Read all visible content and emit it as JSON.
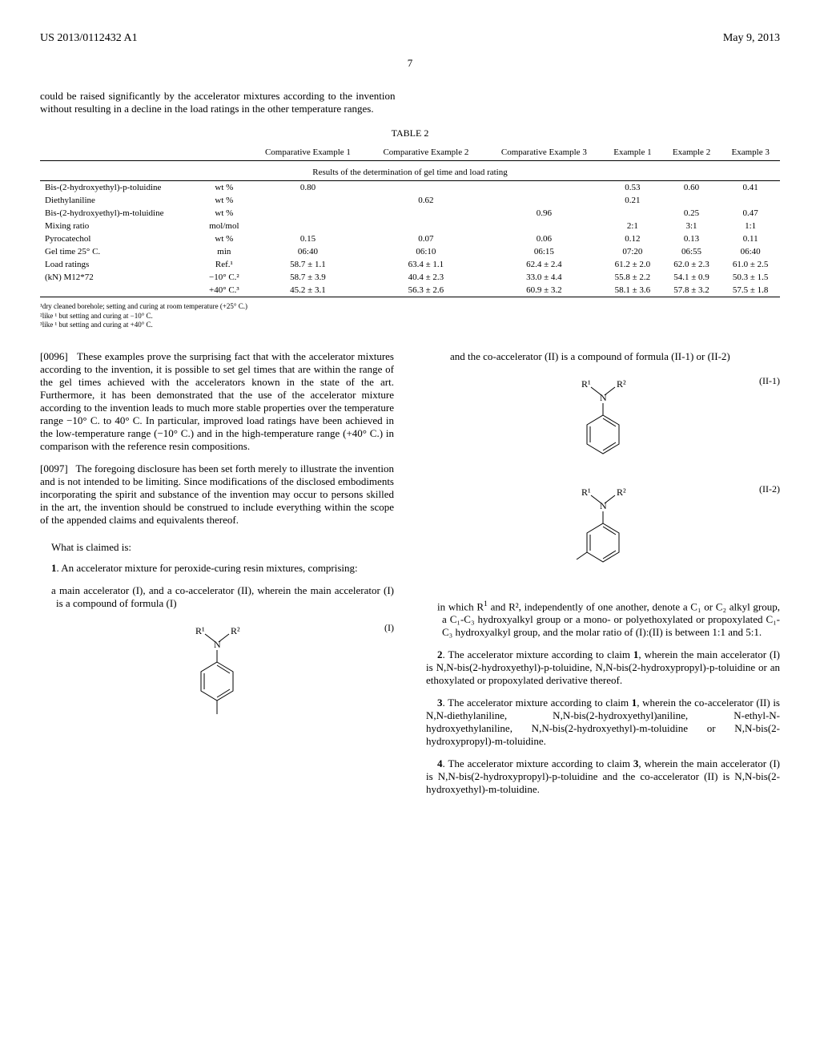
{
  "header": {
    "pub_number": "US 2013/0112432 A1",
    "pub_date": "May 9, 2013"
  },
  "page_number": "7",
  "intro_text": "could be raised significantly by the accelerator mixtures according to the invention without resulting in a decline in the load ratings in the other temperature ranges.",
  "table": {
    "caption": "TABLE 2",
    "subtitle": "Results of the determination of gel time and load rating",
    "columns": [
      "",
      "",
      "Comparative Example 1",
      "Comparative Example 2",
      "Comparative Example 3",
      "Example 1",
      "Example 2",
      "Example 3"
    ],
    "rows": [
      [
        "Bis-(2-hydroxyethyl)-p-toluidine",
        "wt %",
        "0.80",
        "",
        "",
        "0.53",
        "0.60",
        "0.41"
      ],
      [
        "Diethylaniline",
        "wt %",
        "",
        "0.62",
        "",
        "0.21",
        "",
        ""
      ],
      [
        "Bis-(2-hydroxyethyl)-m-toluidine",
        "wt %",
        "",
        "",
        "0.96",
        "",
        "0.25",
        "0.47"
      ],
      [
        "Mixing ratio",
        "mol/mol",
        "",
        "",
        "",
        "2:1",
        "3:1",
        "1:1"
      ],
      [
        "Pyrocatechol",
        "wt %",
        "0.15",
        "0.07",
        "0.06",
        "0.12",
        "0.13",
        "0.11"
      ],
      [
        "Gel time 25° C.",
        "min",
        "06:40",
        "06:10",
        "06:15",
        "07:20",
        "06:55",
        "06:40"
      ],
      [
        "Load ratings",
        "Ref.¹",
        "58.7 ± 1.1",
        "63.4 ± 1.1",
        "62.4 ± 2.4",
        "61.2 ± 2.0",
        "62.0 ± 2.3",
        "61.0 ± 2.5"
      ],
      [
        "(kN) M12*72",
        "−10° C.²",
        "58.7 ± 3.9",
        "40.4 ± 2.3",
        "33.0 ± 4.4",
        "55.8 ± 2.2",
        "54.1 ± 0.9",
        "50.3 ± 1.5"
      ],
      [
        "",
        "+40° C.³",
        "45.2 ± 3.1",
        "56.3 ± 2.6",
        "60.9 ± 3.2",
        "58.1 ± 3.6",
        "57.8 ± 3.2",
        "57.5 ± 1.8"
      ]
    ],
    "footnotes": [
      "¹dry cleaned borehole; setting and curing at room temperature (+25° C.)",
      "²like ¹ but setting and curing at −10° C.",
      "³like ¹ but setting and curing at +40° C."
    ]
  },
  "para_0096": "These examples prove the surprising fact that with the accelerator mixtures according to the invention, it is possible to set gel times that are within the range of the gel times achieved with the accelerators known in the state of the art. Furthermore, it has been demonstrated that the use of the accelerator mixture according to the invention leads to much more stable properties over the temperature range −10° C. to 40° C. In particular, improved load ratings have been achieved in the low-temperature range (−10° C.) and in the high-temperature range (+40° C.) in comparison with the reference resin compositions.",
  "para_0097": "The foregoing disclosure has been set forth merely to illustrate the invention and is not intended to be limiting. Since modifications of the disclosed embodiments incorporating the spirit and substance of the invention may occur to persons skilled in the art, the invention should be construed to include everything within the scope of the appended claims and equivalents thereof.",
  "claims_intro": "What is claimed is:",
  "claim1_a": "1. An accelerator mixture for peroxide-curing resin mixtures, comprising:",
  "claim1_b": "a main accelerator (I), and a co-accelerator (II), wherein the main accelerator (I) is a compound of formula (I)",
  "formula_I_label": "(I)",
  "claim1_c": "and the co-accelerator (II) is a compound of formula (II-1) or (II-2)",
  "formula_II1_label": "(II-1)",
  "formula_II2_label": "(II-2)",
  "claim1_d_prefix": "in which R",
  "claim1_d": " and R², independently of one another, denote a C₁ or C₂ alkyl group, a C₁-C₃ hydroxyalkyl group or a mono- or polyethoxylated or propoxylated C₁-C₃ hydroxyalkyl group, and the molar ratio of (I):(II) is between 1:1 and 5:1.",
  "claim2": "2. The accelerator mixture according to claim 1, wherein the main accelerator (I) is N,N-bis(2-hydroxyethyl)-p-toluidine, N,N-bis(2-hydroxypropyl)-p-toluidine or an ethoxylated or propoxylated derivative thereof.",
  "claim3": "3. The accelerator mixture according to claim 1, wherein the co-accelerator (II) is N,N-diethylaniline, N,N-bis(2-hydroxyethyl)aniline, N-ethyl-N-hydroxyethylaniline, N,N-bis(2-hydroxyethyl)-m-toluidine or N,N-bis(2-hydroxypropyl)-m-toluidine.",
  "claim4": "4. The accelerator mixture according to claim 3, wherein the main accelerator (I) is N,N-bis(2-hydroxypropyl)-p-toluidine and the co-accelerator (II) is N,N-bis(2-hydroxyethyl)-m-toluidine."
}
